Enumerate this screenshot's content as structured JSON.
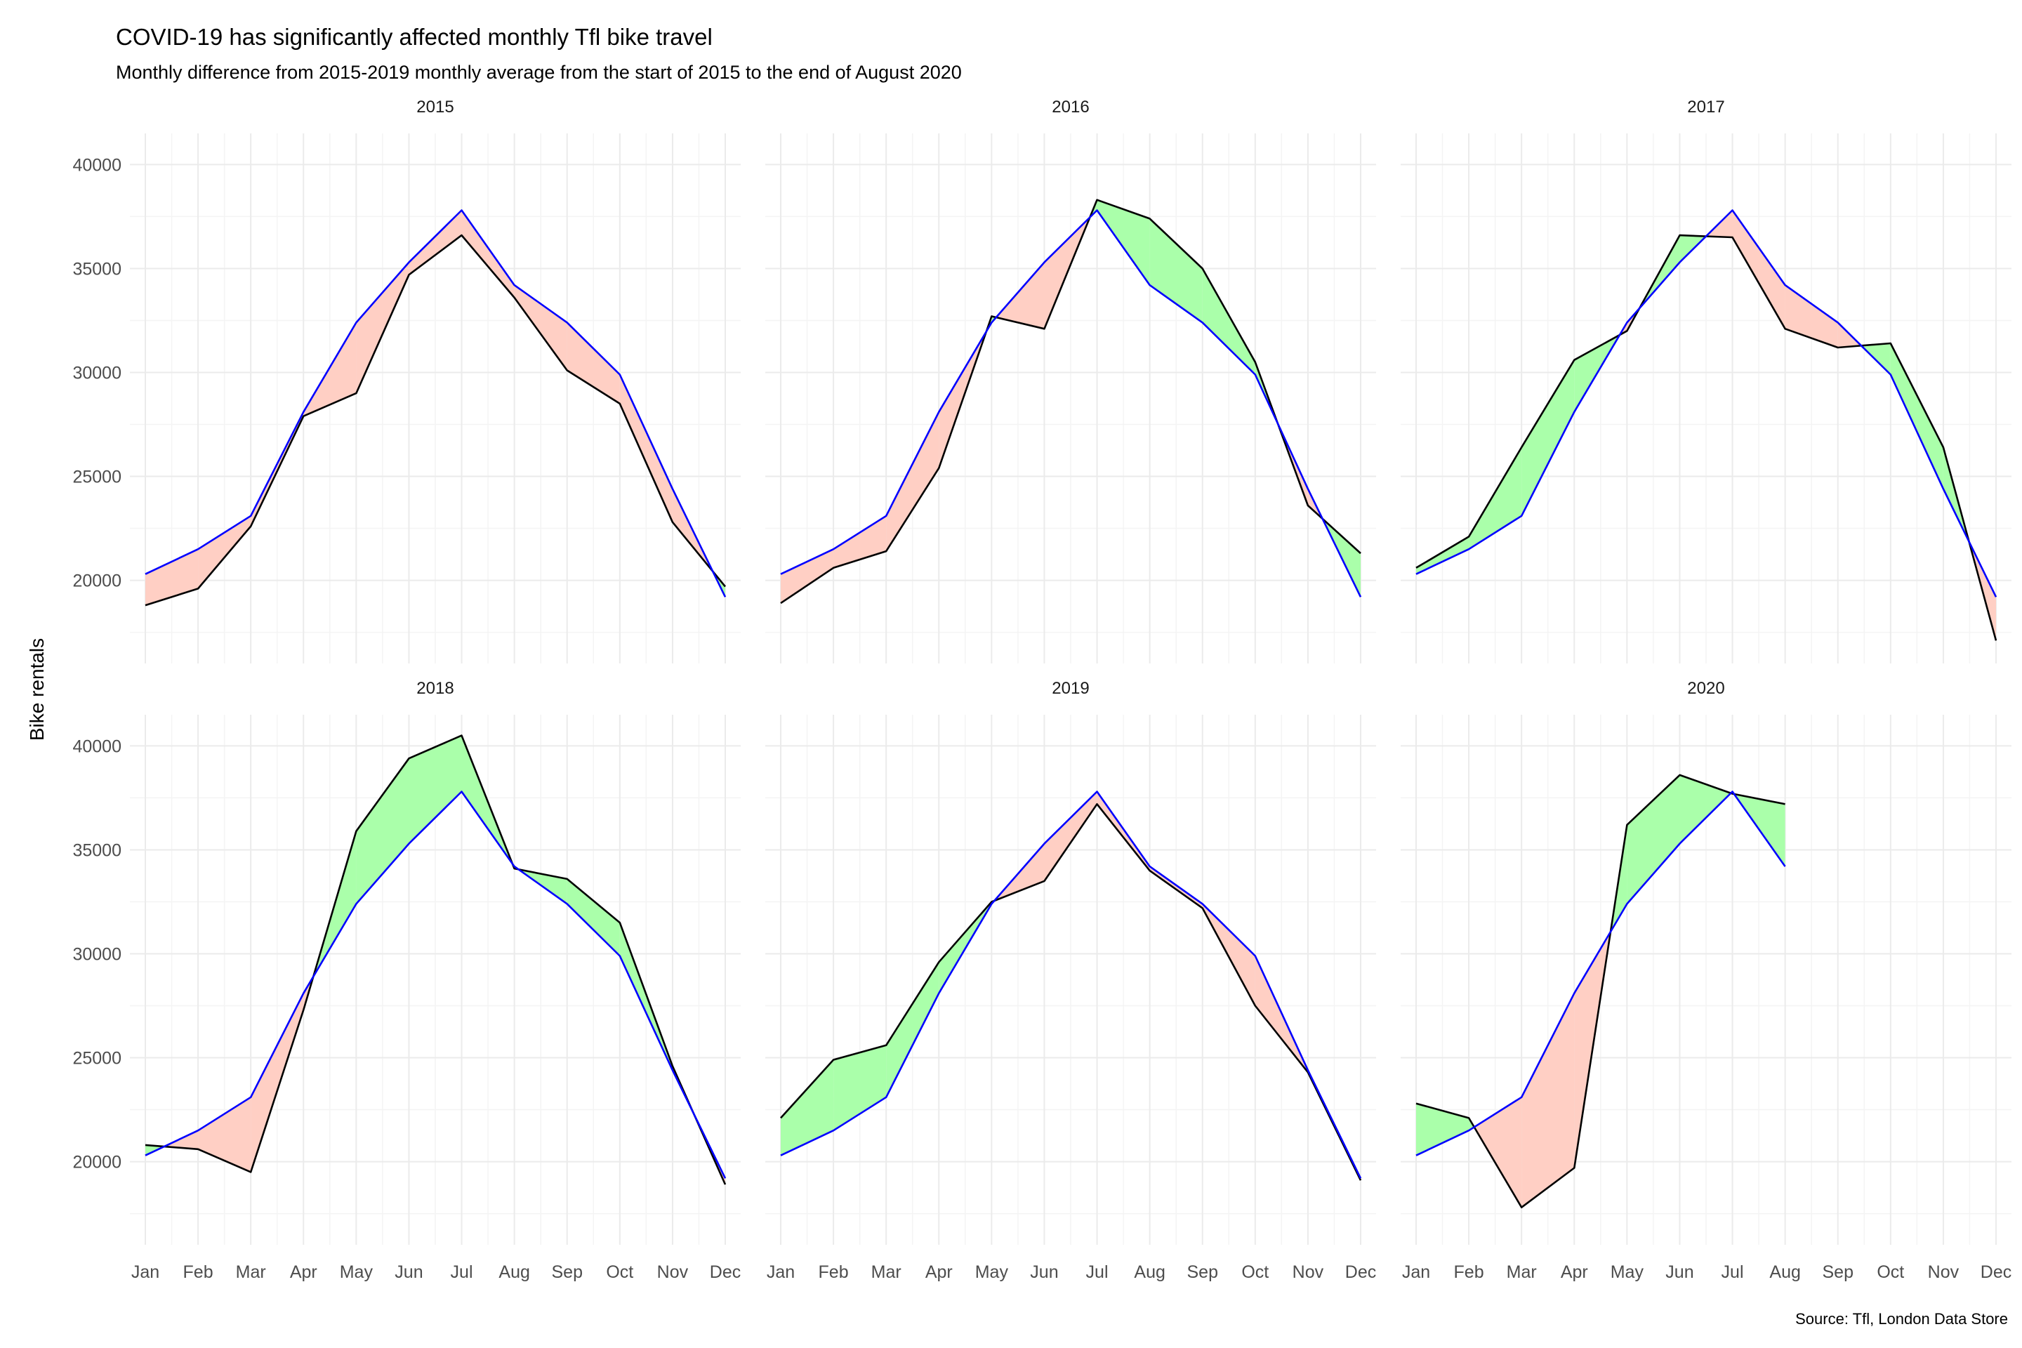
{
  "chart_data": {
    "type": "area",
    "title": "COVID-19 has significantly affected monthly Tfl bike travel",
    "subtitle": "Monthly difference from 2015-2019 monthly average from the start of 2015 to the end of August 2020",
    "caption": "Source: Tfl, London Data Store",
    "ylabel": "Bike rentals",
    "xlabel": "",
    "categories": [
      "Jan",
      "Feb",
      "Mar",
      "Apr",
      "May",
      "Jun",
      "Jul",
      "Aug",
      "Sep",
      "Oct",
      "Nov",
      "Dec"
    ],
    "ylim": [
      16000,
      41500
    ],
    "y_ticks": [
      20000,
      25000,
      30000,
      35000,
      40000
    ],
    "grid": true,
    "legend": "none",
    "colors": {
      "average_line": "#0000ff",
      "actual_line": "#000000",
      "above_average_fill": "#aaffaa",
      "below_average_fill": "#ffcfc4"
    },
    "average": [
      20300,
      21500,
      23100,
      28100,
      32400,
      35300,
      37800,
      34200,
      32400,
      29900,
      24400,
      19200
    ],
    "panels": [
      {
        "label": "2015",
        "actual": [
          18800,
          19600,
          22600,
          27900,
          29000,
          34700,
          36600,
          33600,
          30100,
          28500,
          22800,
          19700
        ]
      },
      {
        "label": "2016",
        "actual": [
          18900,
          20600,
          21400,
          25400,
          32700,
          32100,
          38300,
          37400,
          35000,
          30500,
          23600,
          21300
        ]
      },
      {
        "label": "2017",
        "actual": [
          20600,
          22100,
          26400,
          30600,
          32000,
          36600,
          36500,
          32100,
          31200,
          31400,
          26400,
          17100
        ]
      },
      {
        "label": "2018",
        "actual": [
          20800,
          20600,
          19500,
          27300,
          35900,
          39400,
          40500,
          34100,
          33600,
          31500,
          24600,
          18900
        ]
      },
      {
        "label": "2019",
        "actual": [
          22100,
          24900,
          25600,
          29600,
          32500,
          33500,
          37200,
          34000,
          32200,
          27500,
          24300,
          19100
        ]
      },
      {
        "label": "2020",
        "actual": [
          22800,
          22100,
          17800,
          19700,
          36200,
          38600,
          37700,
          37200
        ]
      }
    ]
  }
}
